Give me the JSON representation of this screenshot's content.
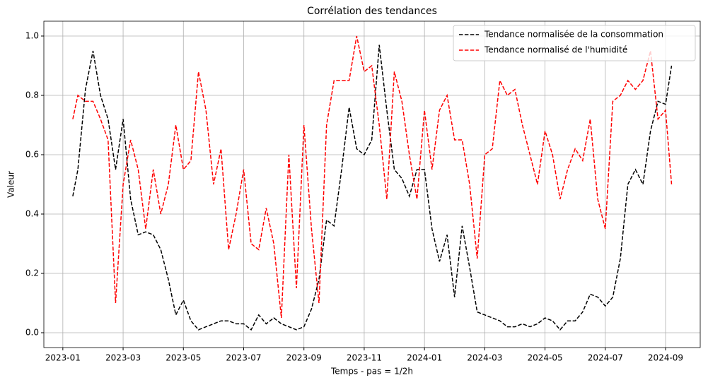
{
  "chart_data": {
    "type": "line",
    "title": "Corrélation des tendances",
    "x_label": "Temps -  pas = 1/2h",
    "y_label": "Valeur",
    "x": [
      0.33,
      0.5,
      0.75,
      1,
      1.25,
      1.5,
      1.75,
      2,
      2.25,
      2.5,
      2.75,
      3,
      3.25,
      3.5,
      3.75,
      4,
      4.25,
      4.5,
      4.75,
      5,
      5.25,
      5.5,
      5.75,
      6,
      6.25,
      6.5,
      6.75,
      7,
      7.25,
      7.5,
      7.75,
      8,
      8.25,
      8.5,
      8.75,
      9,
      9.25,
      9.5,
      9.75,
      10,
      10.25,
      10.5,
      10.75,
      11,
      11.25,
      11.5,
      11.75,
      12,
      12.25,
      12.5,
      12.75,
      13,
      13.25,
      13.5,
      13.75,
      14,
      14.25,
      14.5,
      14.75,
      15,
      15.25,
      15.5,
      15.75,
      16,
      16.25,
      16.5,
      16.75,
      17,
      17.25,
      17.5,
      17.75,
      18,
      18.25,
      18.5,
      18.75,
      19,
      19.25,
      19.5,
      19.75,
      20,
      20.2
    ],
    "series": [
      {
        "name": "Tendance normalisée de la consommation",
        "color": "#000000",
        "values": [
          0.46,
          0.55,
          0.82,
          0.95,
          0.8,
          0.72,
          0.55,
          0.72,
          0.45,
          0.33,
          0.34,
          0.33,
          0.28,
          0.18,
          0.06,
          0.11,
          0.04,
          0.01,
          0.02,
          0.03,
          0.04,
          0.04,
          0.03,
          0.03,
          0.01,
          0.06,
          0.03,
          0.05,
          0.03,
          0.02,
          0.01,
          0.02,
          0.08,
          0.18,
          0.38,
          0.36,
          0.55,
          0.76,
          0.62,
          0.6,
          0.65,
          0.97,
          0.75,
          0.55,
          0.52,
          0.46,
          0.55,
          0.55,
          0.35,
          0.24,
          0.33,
          0.12,
          0.36,
          0.22,
          0.07,
          0.06,
          0.05,
          0.04,
          0.02,
          0.02,
          0.03,
          0.02,
          0.03,
          0.05,
          0.04,
          0.01,
          0.04,
          0.04,
          0.07,
          0.13,
          0.12,
          0.09,
          0.12,
          0.25,
          0.5,
          0.55,
          0.5,
          0.68,
          0.78,
          0.77,
          0.9
        ]
      },
      {
        "name": "Tendance normalisé de l'humidité",
        "color": "#ff0000",
        "values": [
          0.72,
          0.8,
          0.78,
          0.78,
          0.72,
          0.65,
          0.1,
          0.5,
          0.65,
          0.55,
          0.35,
          0.55,
          0.4,
          0.5,
          0.7,
          0.55,
          0.58,
          0.88,
          0.75,
          0.5,
          0.62,
          0.28,
          0.4,
          0.55,
          0.3,
          0.28,
          0.42,
          0.3,
          0.05,
          0.6,
          0.15,
          0.7,
          0.35,
          0.1,
          0.7,
          0.85,
          0.85,
          0.85,
          1.0,
          0.88,
          0.9,
          0.7,
          0.45,
          0.88,
          0.78,
          0.6,
          0.45,
          0.75,
          0.55,
          0.75,
          0.8,
          0.65,
          0.65,
          0.5,
          0.25,
          0.6,
          0.62,
          0.85,
          0.8,
          0.82,
          0.7,
          0.6,
          0.5,
          0.68,
          0.6,
          0.45,
          0.55,
          0.62,
          0.58,
          0.72,
          0.45,
          0.35,
          0.78,
          0.8,
          0.85,
          0.82,
          0.85,
          0.95,
          0.72,
          0.75,
          0.5
        ]
      }
    ],
    "xlim": [
      -0.63,
      21.15
    ],
    "xticks": [
      {
        "value": 0,
        "label": "2023-01"
      },
      {
        "value": 2,
        "label": "2023-03"
      },
      {
        "value": 4,
        "label": "2023-05"
      },
      {
        "value": 6,
        "label": "2023-07"
      },
      {
        "value": 8,
        "label": "2023-09"
      },
      {
        "value": 10,
        "label": "2023-11"
      },
      {
        "value": 12,
        "label": "2024-01"
      },
      {
        "value": 14,
        "label": "2024-03"
      },
      {
        "value": 16,
        "label": "2024-05"
      },
      {
        "value": 18,
        "label": "2024-07"
      },
      {
        "value": 20,
        "label": "2024-09"
      }
    ],
    "ylim": [
      -0.05,
      1.05
    ],
    "yticks": [
      {
        "value": 0,
        "label": "0.0"
      },
      0.2,
      0.4,
      0.6,
      0.8,
      {
        "value": 1,
        "label": "1.0"
      }
    ],
    "grid": true,
    "legend": "upper-right",
    "dashed": true
  }
}
